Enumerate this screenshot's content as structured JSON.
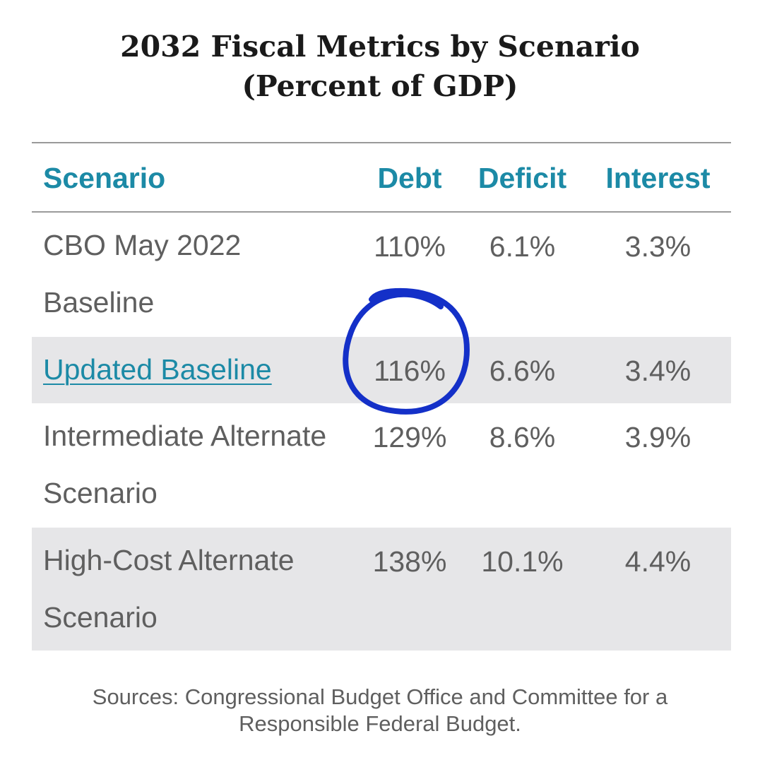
{
  "chart_data": {
    "type": "table",
    "title_lines": [
      "2032 Fiscal Metrics by Scenario",
      "(Percent of GDP)"
    ],
    "columns": [
      "Scenario",
      "Debt",
      "Deficit",
      "Interest"
    ],
    "rows": [
      {
        "scenario": "CBO May 2022 Baseline",
        "debt": "110%",
        "deficit": "6.1%",
        "interest": "3.3%",
        "link": false,
        "shaded": false
      },
      {
        "scenario": "Updated Baseline",
        "debt": "116%",
        "deficit": "6.6%",
        "interest": "3.4%",
        "link": true,
        "shaded": true
      },
      {
        "scenario": "Intermediate Alternate Scenario",
        "debt": "129%",
        "deficit": "8.6%",
        "interest": "3.9%",
        "link": false,
        "shaded": false
      },
      {
        "scenario": "High-Cost Alternate Scenario",
        "debt": "138%",
        "deficit": "10.1%",
        "interest": "4.4%",
        "link": false,
        "shaded": true
      }
    ],
    "highlighted_cell": {
      "row": 1,
      "column": "Debt",
      "marker": "hand-drawn circle",
      "color": "#1430c8"
    },
    "source_lines": [
      "Sources: Congressional Budget Office and Committee for a",
      "Responsible Federal Budget."
    ]
  },
  "colors": {
    "header": "#1c8aa6",
    "body_text": "#5f5f5f",
    "shaded_row": "#e6e6e8",
    "rule": "#9a9a9a",
    "annotation": "#1430c8"
  }
}
